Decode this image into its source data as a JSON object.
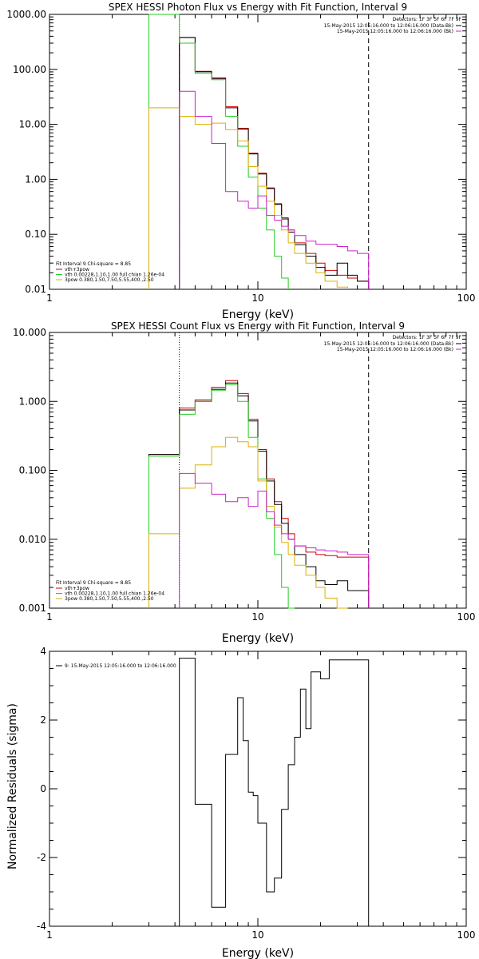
{
  "colors": {
    "black": "#000000",
    "red": "#cc0000",
    "green": "#22cc22",
    "orange": "#ddb000",
    "magenta": "#cc22cc"
  },
  "chart_data": [
    {
      "type": "line",
      "title": "SPEX HESSI Photon Flux vs Energy with Fit Function, Interval 9",
      "xlabel": "Energy (keV)",
      "ylabel": "",
      "xscale": "log",
      "yscale": "log",
      "xlim": [
        1,
        100
      ],
      "ylim": [
        0.01,
        1000
      ],
      "xticks": [
        "1",
        "10",
        "100"
      ],
      "yticks": [
        "0.01",
        "0.10",
        "1.00",
        "10.00",
        "100.00",
        "1000.00"
      ],
      "vlines": [
        {
          "x": 4.2,
          "style": "dotted"
        },
        {
          "x": 34,
          "style": "dashed"
        }
      ],
      "legend_right": {
        "header": "Detectors: 1F 3F 5F 6F 7F 9F",
        "items": [
          {
            "label": "15-May-2015 12:05:16.000 to 12:06:16.000 (Data-Bk)",
            "color": "#000000"
          },
          {
            "label": "15-May-2015 12:05:16.000 to 12:06:16.000 (Bk)",
            "color": "#cc22cc"
          }
        ]
      },
      "legend_left": {
        "header": "Fit Interval 9   Chi-square = 8.85",
        "items": [
          {
            "label": "vth+3pow",
            "color": "#cc0000"
          },
          {
            "label": "vth 0.00228,1.10,1.00  full chian 1.26e-04",
            "color": "#22cc22"
          },
          {
            "label": "3pow 0.380,1.50,7.50,5.55,400.,2.50",
            "color": "#ddb000"
          }
        ]
      },
      "edges": [
        3.0,
        4.2,
        5.0,
        6.0,
        7.0,
        8.0,
        9.0,
        10.0,
        11.0,
        12.0,
        13.0,
        14.0,
        15.0,
        17.0,
        19.0,
        21.0,
        24.0,
        27.0,
        30.0,
        34.0
      ],
      "series": [
        {
          "name": "vth+3pow",
          "color": "#cc0000",
          "values": [
            null,
            380,
            92,
            70,
            21,
            8.5,
            3.0,
            1.3,
            0.7,
            0.36,
            0.2,
            0.12,
            0.07,
            0.045,
            0.03,
            0.022,
            0.018,
            0.016,
            0.014
          ]
        },
        {
          "name": "Data-Bk",
          "color": "#000000",
          "values": [
            null,
            380,
            90,
            68,
            20,
            8.2,
            2.9,
            1.25,
            0.68,
            0.35,
            0.19,
            0.11,
            0.065,
            0.04,
            0.025,
            0.018,
            0.03,
            0.018,
            0.014
          ]
        },
        {
          "name": "vth",
          "color": "#22cc22",
          "values": [
            1000,
            300,
            85,
            65,
            14,
            4.0,
            1.1,
            0.3,
            0.12,
            0.04,
            0.016,
            null,
            null,
            null,
            null,
            null,
            null,
            null,
            null
          ]
        },
        {
          "name": "3pow",
          "color": "#ddb000",
          "values": [
            20,
            14,
            10,
            10.5,
            8.0,
            5.0,
            1.7,
            0.75,
            0.4,
            0.22,
            0.12,
            0.07,
            0.045,
            0.03,
            0.02,
            0.014,
            0.011,
            null,
            null
          ]
        },
        {
          "name": "Bk",
          "color": "#cc22cc",
          "values": [
            null,
            40,
            14,
            4.5,
            0.6,
            0.4,
            0.3,
            0.5,
            0.22,
            0.18,
            0.14,
            0.12,
            0.095,
            0.075,
            0.066,
            0.066,
            0.06,
            0.05,
            0.045
          ]
        }
      ]
    },
    {
      "type": "line",
      "title": "SPEX HESSI Count Flux vs Energy with Fit Function, Interval 9",
      "xlabel": "Energy (keV)",
      "ylabel": "",
      "xscale": "log",
      "yscale": "log",
      "xlim": [
        1,
        100
      ],
      "ylim": [
        0.001,
        10
      ],
      "xticks": [
        "1",
        "10",
        "100"
      ],
      "yticks": [
        "0.001",
        "0.010",
        "0.100",
        "1.000",
        "10.000"
      ],
      "vlines": [
        {
          "x": 4.2,
          "style": "dotted"
        },
        {
          "x": 34,
          "style": "dashed"
        }
      ],
      "legend_right": {
        "header": "Detectors: 1F 3F 5F 6F 7F 9F",
        "items": [
          {
            "label": "15-May-2015 12:05:16.000 to 12:06:16.000 (Data-Bk)",
            "color": "#000000"
          },
          {
            "label": "15-May-2015 12:05:16.000 to 12:06:16.000 (Bk)",
            "color": "#cc22cc"
          }
        ]
      },
      "legend_left": {
        "header": "Fit Interval 9   Chi-square = 8.85",
        "items": [
          {
            "label": "vth+3pow",
            "color": "#cc0000"
          },
          {
            "label": "vth 0.00228,1.10,1.00  full chian 1.26e-04",
            "color": "#22cc22"
          },
          {
            "label": "3pow 0.380,1.50,7.50,5.55,400.,2.50",
            "color": "#ddb000"
          }
        ]
      },
      "edges": [
        3.0,
        4.2,
        5.0,
        6.0,
        7.0,
        8.0,
        9.0,
        10.0,
        11.0,
        12.0,
        13.0,
        14.0,
        15.0,
        17.0,
        19.0,
        21.0,
        24.0,
        27.0,
        30.0,
        34.0
      ],
      "series": [
        {
          "name": "vth+3pow",
          "color": "#cc0000",
          "values": [
            0.17,
            0.8,
            1.05,
            1.6,
            2.0,
            1.3,
            0.55,
            0.2,
            0.075,
            0.035,
            0.02,
            0.012,
            0.008,
            0.0065,
            0.006,
            0.0058,
            0.0055,
            0.0055,
            0.0055
          ]
        },
        {
          "name": "Data-Bk",
          "color": "#000000",
          "values": [
            0.17,
            0.75,
            1.0,
            1.5,
            1.85,
            1.2,
            0.52,
            0.19,
            0.07,
            0.032,
            0.017,
            0.01,
            0.006,
            0.004,
            0.0025,
            0.0022,
            0.0025,
            0.0018,
            0.0018
          ]
        },
        {
          "name": "vth",
          "color": "#22cc22",
          "values": [
            0.16,
            0.65,
            1.0,
            1.45,
            1.75,
            1.0,
            0.3,
            0.075,
            0.02,
            0.006,
            0.002,
            0.001,
            null,
            null,
            null,
            null,
            null,
            null,
            null
          ]
        },
        {
          "name": "3pow",
          "color": "#ddb000",
          "values": [
            0.012,
            0.055,
            0.12,
            0.22,
            0.3,
            0.26,
            0.22,
            0.07,
            0.03,
            0.015,
            0.009,
            0.006,
            0.0042,
            0.003,
            0.002,
            0.0014,
            0.001,
            null,
            null
          ]
        },
        {
          "name": "Bk",
          "color": "#cc22cc",
          "values": [
            null,
            0.09,
            0.065,
            0.045,
            0.035,
            0.04,
            0.03,
            0.05,
            0.025,
            0.016,
            0.012,
            0.01,
            0.008,
            0.0075,
            0.007,
            0.0068,
            0.0065,
            0.006,
            0.006
          ]
        }
      ]
    },
    {
      "type": "line",
      "title": "",
      "xlabel": "Energy (keV)",
      "ylabel": "Normalized Residuals (sigma)",
      "xscale": "log",
      "yscale": "linear",
      "xlim": [
        1,
        100
      ],
      "ylim": [
        -4,
        4
      ],
      "xticks": [
        "1",
        "10",
        "100"
      ],
      "yticks": [
        "-4",
        "-2",
        "0",
        "2",
        "4"
      ],
      "legend_left": {
        "header": "",
        "items": [
          {
            "label": "9: 15-May-2015 12:05:16.000 to 12:06:16.000",
            "color": "#000000"
          }
        ]
      },
      "edges": [
        4.2,
        5.0,
        6.0,
        7.0,
        7.5,
        8.0,
        8.5,
        9.0,
        9.5,
        10.0,
        11.0,
        12.0,
        13.0,
        14.0,
        15.0,
        16.0,
        17.0,
        18.0,
        20.0,
        22.0,
        24.0,
        26.0,
        30.0,
        34.0
      ],
      "series": [
        {
          "name": "",
          "color": "#000000",
          "values": [
            3.8,
            -0.45,
            -3.45,
            1.0,
            1.0,
            2.65,
            1.4,
            -0.1,
            -0.2,
            -1.0,
            -3.0,
            -2.6,
            -0.6,
            0.7,
            1.5,
            2.9,
            1.75,
            3.4,
            3.2,
            3.75,
            3.75,
            3.75,
            3.75
          ]
        }
      ]
    }
  ]
}
